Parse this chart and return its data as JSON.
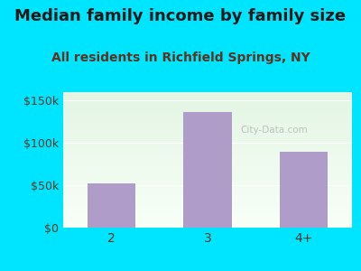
{
  "title": "Median family income by family size",
  "subtitle": "All residents in Richfield Springs, NY",
  "categories": [
    "2",
    "3",
    "4+"
  ],
  "values": [
    52000,
    137000,
    90000
  ],
  "bar_color": "#b09cc8",
  "background_outer": "#00e5ff",
  "title_color": "#1a1a1a",
  "subtitle_color": "#5c3320",
  "tick_color": "#4a3728",
  "ylim": [
    0,
    160000
  ],
  "yticks": [
    0,
    50000,
    100000,
    150000
  ],
  "ytick_labels": [
    "$0",
    "$50k",
    "$100k",
    "$150k"
  ],
  "title_fontsize": 13,
  "subtitle_fontsize": 10,
  "watermark": "City-Data.com"
}
